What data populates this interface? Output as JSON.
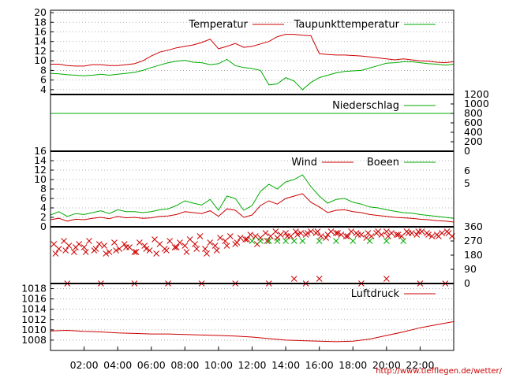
{
  "credit": "http://www.tiefflegen.de/wetter/",
  "colors": {
    "red": "#cc0000",
    "green": "#00aa00",
    "grid": "#999999"
  },
  "chart_data": [
    {
      "id": "temperature",
      "type": "line",
      "ylim": [
        3,
        20.5
      ],
      "yticks": [
        "4",
        "6",
        "8",
        "10",
        "12",
        "14",
        "16",
        "18",
        "20"
      ],
      "grid": true,
      "legend_placement": "top",
      "x": [
        0,
        0.5,
        1,
        1.5,
        2,
        2.5,
        3,
        3.5,
        4,
        4.5,
        5,
        5.5,
        6,
        6.5,
        7,
        7.5,
        8,
        8.5,
        9,
        9.5,
        10,
        10.5,
        11,
        11.5,
        12,
        12.5,
        13,
        13.5,
        14,
        14.5,
        15,
        15.5,
        16,
        16.5,
        17,
        17.5,
        18,
        18.5,
        19,
        19.5,
        20,
        20.5,
        21,
        21.5,
        22,
        22.5,
        23,
        23.5,
        24
      ],
      "series": [
        {
          "name": "Temperatur",
          "color": "red",
          "values": [
            9.3,
            9.3,
            9.0,
            8.9,
            8.9,
            9.2,
            9.2,
            9.0,
            9.0,
            9.2,
            9.4,
            10.0,
            11.0,
            11.8,
            12.2,
            12.7,
            13.0,
            13.3,
            13.8,
            14.5,
            12.5,
            13.0,
            13.6,
            12.8,
            13.0,
            13.5,
            14.0,
            15.0,
            15.5,
            15.5,
            15.3,
            15.2,
            11.5,
            11.3,
            11.2,
            11.2,
            11.1,
            11.0,
            10.8,
            10.6,
            10.4,
            10.2,
            10.4,
            10.2,
            10.0,
            9.9,
            9.7,
            9.6,
            9.8
          ]
        },
        {
          "name": "Taupunkttemperatur",
          "color": "green",
          "values": [
            7.4,
            7.3,
            7.1,
            7.0,
            6.9,
            7.0,
            7.2,
            7.0,
            7.2,
            7.4,
            7.6,
            8.0,
            8.6,
            9.1,
            9.6,
            9.9,
            10.1,
            9.7,
            9.6,
            9.2,
            9.4,
            10.3,
            9.0,
            8.6,
            8.4,
            8.0,
            5.0,
            5.2,
            6.5,
            5.8,
            4.0,
            5.5,
            6.5,
            7.0,
            7.5,
            7.8,
            7.9,
            8.0,
            8.5,
            9.0,
            9.5,
            9.6,
            9.8,
            9.8,
            9.6,
            9.4,
            9.3,
            9.1,
            9.3
          ]
        }
      ]
    },
    {
      "id": "precipitation",
      "type": "line",
      "ylim": [
        0,
        1200
      ],
      "yticks": [
        "0",
        "200",
        "400",
        "600",
        "800",
        "1000",
        "1200"
      ],
      "series": [
        {
          "name": "Niederschlag",
          "color": "green",
          "values": [
            800,
            800
          ]
        }
      ],
      "x": [
        0,
        24
      ]
    },
    {
      "id": "wind",
      "type": "line",
      "ylim": [
        0,
        16
      ],
      "yticks": [
        "0",
        "2",
        "4",
        "6",
        "8",
        "10",
        "12",
        "14",
        "16"
      ],
      "right_ticks": [
        "6",
        "5"
      ],
      "grid": true,
      "x": [
        0,
        0.5,
        1,
        1.5,
        2,
        2.5,
        3,
        3.5,
        4,
        4.5,
        5,
        5.5,
        6,
        6.5,
        7,
        7.5,
        8,
        8.5,
        9,
        9.5,
        10,
        10.5,
        11,
        11.5,
        12,
        12.5,
        13,
        13.5,
        14,
        14.5,
        15,
        15.5,
        16,
        16.5,
        17,
        17.5,
        18,
        18.5,
        19,
        19.5,
        20,
        20.5,
        21,
        21.5,
        22,
        22.5,
        23,
        23.5,
        24
      ],
      "series": [
        {
          "name": "Wind",
          "color": "red",
          "values": [
            1.5,
            1.8,
            1.2,
            1.6,
            1.5,
            1.8,
            2.0,
            1.7,
            2.2,
            1.9,
            2.0,
            1.8,
            1.9,
            2.2,
            2.3,
            2.6,
            3.2,
            3.0,
            2.8,
            3.4,
            2.2,
            3.8,
            3.5,
            2.0,
            2.5,
            4.5,
            5.5,
            4.8,
            6.0,
            6.5,
            7.0,
            5.2,
            4.2,
            3.0,
            3.5,
            3.6,
            3.2,
            3.0,
            2.6,
            2.4,
            2.2,
            2.0,
            1.9,
            1.8,
            1.6,
            1.5,
            1.3,
            1.2,
            1.0
          ]
        },
        {
          "name": "Boeen",
          "color": "green",
          "values": [
            2.5,
            3.2,
            2.2,
            2.8,
            2.6,
            3.0,
            3.4,
            2.8,
            3.6,
            3.2,
            3.2,
            3.0,
            3.2,
            3.6,
            3.8,
            4.5,
            5.5,
            5.0,
            4.6,
            5.8,
            3.5,
            6.5,
            6.0,
            3.5,
            4.5,
            7.5,
            9.0,
            8.0,
            9.5,
            10.0,
            11.0,
            8.5,
            6.5,
            5.0,
            5.8,
            6.0,
            5.2,
            4.8,
            4.2,
            4.0,
            3.6,
            3.3,
            3.0,
            2.9,
            2.6,
            2.4,
            2.2,
            2.0,
            1.8
          ]
        }
      ]
    },
    {
      "id": "wind-direction",
      "type": "scatter",
      "ylim": [
        0,
        360
      ],
      "yticks": [
        "0",
        "90",
        "180",
        "270",
        "360"
      ],
      "series": [
        {
          "name": "Wind",
          "color": "red",
          "marker": "x",
          "x": [
            0.2,
            0.5,
            0.8,
            1.1,
            1.4,
            1.7,
            2.0,
            2.3,
            2.6,
            2.9,
            3.2,
            3.5,
            3.8,
            4.1,
            4.4,
            4.7,
            5.0,
            5.3,
            5.6,
            5.9,
            6.2,
            6.5,
            6.8,
            7.1,
            7.4,
            7.7,
            8.0,
            8.3,
            8.6,
            8.9,
            9.2,
            9.5,
            9.8,
            10.1,
            10.4,
            10.7,
            11.0,
            11.3,
            11.6,
            11.9,
            12.2,
            12.5,
            12.8,
            13.1,
            13.4,
            13.7,
            14.0,
            14.3,
            14.6,
            14.9,
            15.2,
            15.5,
            15.8,
            16.1,
            16.4,
            16.7,
            17.0,
            17.3,
            17.6,
            17.9,
            18.2,
            18.5,
            18.8,
            19.1,
            19.4,
            19.7,
            20.0,
            20.3,
            20.6,
            20.9,
            21.2,
            21.5,
            21.8,
            22.1,
            22.4,
            22.7,
            23.0,
            23.3,
            23.6,
            23.9,
            0.3,
            0.9,
            1.5,
            2.1,
            2.7,
            3.3,
            3.9,
            4.5,
            5.1,
            5.7,
            6.3,
            6.9,
            7.5,
            8.1,
            8.7,
            9.3,
            9.9,
            10.5,
            11.1,
            11.7,
            12.3,
            12.9,
            13.5,
            14.1,
            14.7,
            15.3,
            15.9,
            16.5,
            17.1,
            17.7,
            18.3,
            18.9,
            19.5,
            20.1,
            20.7,
            21.3,
            21.9,
            22.5,
            23.1,
            23.7,
            1.0,
            3.0,
            5.0,
            7.0,
            9.0,
            11.0,
            13.0,
            14.5,
            15.2,
            16.0,
            18.5,
            20.0,
            22.0,
            23.5
          ],
          "y": [
            250,
            220,
            270,
            240,
            200,
            250,
            230,
            270,
            210,
            250,
            240,
            200,
            260,
            220,
            250,
            230,
            200,
            260,
            240,
            210,
            280,
            250,
            220,
            270,
            230,
            260,
            240,
            280,
            250,
            300,
            220,
            260,
            240,
            290,
            270,
            300,
            250,
            290,
            280,
            310,
            300,
            290,
            320,
            300,
            330,
            310,
            320,
            300,
            330,
            320,
            310,
            330,
            320,
            300,
            290,
            330,
            320,
            310,
            300,
            330,
            320,
            310,
            290,
            300,
            320,
            310,
            330,
            320,
            310,
            300,
            330,
            320,
            310,
            330,
            320,
            300,
            310,
            320,
            330,
            300,
            190,
            210,
            230,
            200,
            220,
            190,
            210,
            230,
            200,
            220,
            190,
            210,
            230,
            200,
            220,
            190,
            210,
            240,
            260,
            280,
            250,
            270,
            290,
            300,
            310,
            320,
            330,
            310,
            320,
            300,
            310,
            320,
            330,
            300,
            310,
            320,
            330,
            310,
            300,
            320,
            0,
            0,
            0,
            0,
            0,
            0,
            0,
            30,
            0,
            30,
            0,
            30,
            0,
            0
          ]
        },
        {
          "name": "Boeen",
          "color": "green",
          "marker": "x",
          "x": [
            12.0,
            12.5,
            13.0,
            13.5,
            14.0,
            14.5,
            15.0,
            16.0,
            17.0,
            18.0,
            19.0,
            20.0,
            21.0
          ],
          "y": [
            270,
            270,
            270,
            270,
            270,
            270,
            270,
            270,
            270,
            270,
            270,
            270,
            270
          ]
        }
      ]
    },
    {
      "id": "pressure",
      "type": "line",
      "ylim": [
        1006,
        1019
      ],
      "yticks": [
        "1008",
        "1010",
        "1012",
        "1014",
        "1016",
        "1018"
      ],
      "grid": true,
      "x": [
        0,
        1,
        2,
        3,
        4,
        5,
        6,
        7,
        8,
        9,
        10,
        11,
        12,
        13,
        14,
        15,
        16,
        17,
        18,
        19,
        20,
        21,
        22,
        23,
        24
      ],
      "xticks": [
        "02:00",
        "04:00",
        "06:00",
        "08:00",
        "10:00",
        "12:00",
        "14:00",
        "16:00",
        "18:00",
        "20:00",
        "22:00"
      ],
      "series": [
        {
          "name": "Luftdruck",
          "color": "red",
          "values": [
            1009.8,
            1009.9,
            1009.7,
            1009.6,
            1009.4,
            1009.3,
            1009.2,
            1009.2,
            1009.1,
            1009.0,
            1008.9,
            1008.8,
            1008.6,
            1008.3,
            1008.0,
            1007.9,
            1007.8,
            1007.7,
            1007.8,
            1008.2,
            1008.9,
            1009.6,
            1010.4,
            1011.0,
            1011.6
          ]
        }
      ]
    }
  ]
}
